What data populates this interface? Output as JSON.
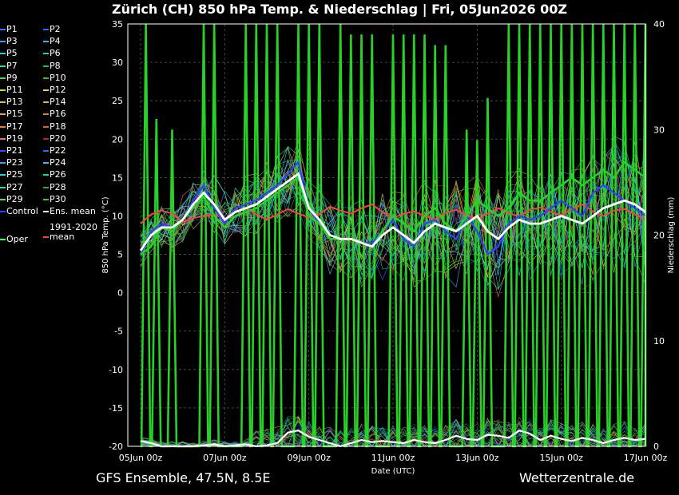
{
  "title": "Zürich  (CH)  850 hPa Temp. & Niederschlag | Fri, 05Jun2026 00Z",
  "footer_left": "GFS Ensemble, 47.5N, 8.5E",
  "footer_right": "Wetterzentrale.de",
  "chart_data": {
    "type": "line",
    "xlabel": "Date (UTC)",
    "ylabel": "850 hPa Temp. (°C)",
    "y2label": "Niederschlag (mm)",
    "ylim": [
      -20,
      35
    ],
    "y2lim": [
      0,
      40
    ],
    "yticks": [
      "35",
      "30",
      "25",
      "20",
      "15",
      "10",
      "5",
      "0",
      "-5",
      "-10",
      "-15",
      "-20"
    ],
    "y2ticks": [
      "40",
      "30",
      "20",
      "10",
      "0"
    ],
    "xticks": [
      "05Jun 00z",
      "07Jun 00z",
      "09Jun 00z",
      "11Jun 00z",
      "13Jun 00z",
      "15Jun 00z",
      "17Jun 00z"
    ],
    "grid": true,
    "legend": [
      {
        "label": "P1",
        "color": "#3f6fff"
      },
      {
        "label": "P2",
        "color": "#1e6fff"
      },
      {
        "label": "P3",
        "color": "#3a98ff"
      },
      {
        "label": "P4",
        "color": "#2fb0ff"
      },
      {
        "label": "P5",
        "color": "#1fd0e0"
      },
      {
        "label": "P6",
        "color": "#20d0b0"
      },
      {
        "label": "P7",
        "color": "#20e0a0"
      },
      {
        "label": "P8",
        "color": "#20c060"
      },
      {
        "label": "P9",
        "color": "#40e040"
      },
      {
        "label": "P10",
        "color": "#30c030"
      },
      {
        "label": "P11",
        "color": "#c0e040"
      },
      {
        "label": "P12",
        "color": "#e0d060"
      },
      {
        "label": "P13",
        "color": "#e0c040"
      },
      {
        "label": "P14",
        "color": "#f0b040"
      },
      {
        "label": "P15",
        "color": "#e0a060"
      },
      {
        "label": "P16",
        "color": "#d08050"
      },
      {
        "label": "P17",
        "color": "#f08040"
      },
      {
        "label": "P18",
        "color": "#e06030"
      },
      {
        "label": "P19",
        "color": "#f07060"
      },
      {
        "label": "P20",
        "color": "#c02020"
      },
      {
        "label": "P21",
        "color": "#3050ff"
      },
      {
        "label": "P22",
        "color": "#2070ff"
      },
      {
        "label": "P23",
        "color": "#3aa0ff"
      },
      {
        "label": "P24",
        "color": "#40b8ff"
      },
      {
        "label": "P25",
        "color": "#20d8e8"
      },
      {
        "label": "P26",
        "color": "#20d0a0"
      },
      {
        "label": "P27",
        "color": "#20e890"
      },
      {
        "label": "P28",
        "color": "#20b050"
      },
      {
        "label": "P29",
        "color": "#60e040"
      },
      {
        "label": "P30",
        "color": "#30d030"
      },
      {
        "label": "Control",
        "color": "#3040ff"
      },
      {
        "label": "Ens. mean",
        "color": "#ffffff"
      },
      {
        "label": "Oper",
        "color": "#40ff40"
      },
      {
        "label": "1991-2020 mean",
        "color": "#ff4040"
      }
    ],
    "x": [
      0,
      6,
      12,
      18,
      24,
      30,
      36,
      42,
      48,
      54,
      60,
      66,
      72,
      78,
      84,
      90,
      96,
      102,
      108,
      114,
      120,
      126,
      132,
      138,
      144,
      150,
      156,
      162,
      168,
      174,
      180,
      186,
      192,
      198,
      204,
      210,
      216,
      222,
      228,
      234,
      240,
      246,
      252,
      258,
      264,
      270,
      276,
      282,
      288
    ],
    "ens_mean": [
      5.5,
      7.5,
      8.5,
      8.5,
      9.5,
      11.5,
      13,
      11.5,
      9.5,
      10.5,
      11,
      11.5,
      12.5,
      13.5,
      14.5,
      15.5,
      11,
      9.5,
      7.5,
      7,
      7,
      6.5,
      6,
      7.5,
      8.5,
      7.5,
      6.5,
      8,
      9,
      8.5,
      8,
      9,
      10,
      8,
      7,
      8.5,
      9.5,
      9,
      9,
      9.5,
      10,
      9.5,
      9,
      10,
      11,
      11.5,
      12,
      11.5,
      10.5
    ],
    "control": [
      5,
      8,
      9,
      8.5,
      9.5,
      12,
      14,
      11,
      9,
      11,
      11.5,
      12,
      13,
      14,
      15.5,
      17,
      11,
      9,
      7,
      7,
      7,
      6.5,
      6.5,
      8,
      9.5,
      7,
      6,
      9,
      9.5,
      8,
      7,
      10,
      8,
      5,
      6,
      9,
      10,
      9.5,
      10,
      11,
      12,
      11,
      10,
      13,
      14,
      13,
      12,
      11,
      10
    ],
    "oper": [
      5,
      6,
      8.5,
      8,
      9.5,
      11,
      12.5,
      10,
      8.5,
      10,
      10.5,
      11,
      12,
      13,
      14,
      15,
      10,
      9,
      7,
      7,
      7,
      6.5,
      6,
      8,
      10,
      9,
      8,
      10,
      11,
      9,
      8,
      10,
      12,
      11,
      10,
      11,
      13,
      12,
      12,
      13,
      14,
      15,
      14,
      15,
      16,
      15,
      17,
      16,
      15
    ],
    "clim_mean": [
      9,
      10.2,
      10.7,
      10.3,
      9.2,
      9.7,
      10,
      10.2,
      9.6,
      10.6,
      11,
      10.2,
      9.5,
      10.2,
      10.9,
      10.3,
      9.8,
      10.2,
      11.2,
      10.7,
      10.3,
      11,
      11.5,
      10.5,
      9.7,
      10.3,
      10.6,
      10,
      9.6,
      10.4,
      10.8,
      10.1,
      9.6,
      10.3,
      11,
      10.4,
      9.9,
      10.8,
      11.1,
      10.5,
      10.1,
      10.9,
      11.5,
      10.6,
      10,
      10.7,
      10.9,
      10.2,
      9.5
    ],
    "precip_mean_mm": [
      0.5,
      0.3,
      0,
      0,
      0,
      0,
      0.1,
      0.2,
      0,
      0.1,
      0.2,
      0,
      0.1,
      0.3,
      1.3,
      1.5,
      0.9,
      0.6,
      0.3,
      0,
      0.3,
      0.6,
      0.4,
      0.5,
      0.4,
      0.3,
      0.6,
      0.4,
      0.3,
      0.6,
      1,
      0.7,
      0.6,
      1.1,
      1,
      0.8,
      1.5,
      1.2,
      0.6,
      1,
      0.7,
      0.5,
      0.8,
      0.6,
      0.3,
      0.6,
      0.8,
      0.6,
      0.7
    ],
    "oper_precip_spikes": [
      {
        "x": 3,
        "mm": 40
      },
      {
        "x": 9,
        "mm": 31
      },
      {
        "x": 18,
        "mm": 30
      },
      {
        "x": 36,
        "mm": 40
      },
      {
        "x": 42,
        "mm": 40
      },
      {
        "x": 60,
        "mm": 40
      },
      {
        "x": 66,
        "mm": 40
      },
      {
        "x": 72,
        "mm": 40
      },
      {
        "x": 78,
        "mm": 40
      },
      {
        "x": 90,
        "mm": 40
      },
      {
        "x": 96,
        "mm": 40
      },
      {
        "x": 102,
        "mm": 40
      },
      {
        "x": 114,
        "mm": 40
      },
      {
        "x": 120,
        "mm": 39
      },
      {
        "x": 126,
        "mm": 39
      },
      {
        "x": 132,
        "mm": 39
      },
      {
        "x": 144,
        "mm": 39
      },
      {
        "x": 150,
        "mm": 39
      },
      {
        "x": 156,
        "mm": 39
      },
      {
        "x": 162,
        "mm": 39
      },
      {
        "x": 168,
        "mm": 38
      },
      {
        "x": 174,
        "mm": 38
      },
      {
        "x": 186,
        "mm": 30
      },
      {
        "x": 192,
        "mm": 29
      },
      {
        "x": 198,
        "mm": 33
      },
      {
        "x": 210,
        "mm": 40
      },
      {
        "x": 216,
        "mm": 40
      },
      {
        "x": 222,
        "mm": 40
      },
      {
        "x": 228,
        "mm": 40
      },
      {
        "x": 234,
        "mm": 40
      },
      {
        "x": 240,
        "mm": 40
      },
      {
        "x": 246,
        "mm": 40
      },
      {
        "x": 252,
        "mm": 40
      },
      {
        "x": 258,
        "mm": 40
      },
      {
        "x": 264,
        "mm": 40
      },
      {
        "x": 270,
        "mm": 40
      },
      {
        "x": 276,
        "mm": 40
      },
      {
        "x": 282,
        "mm": 40
      },
      {
        "x": 288,
        "mm": 40
      }
    ]
  }
}
